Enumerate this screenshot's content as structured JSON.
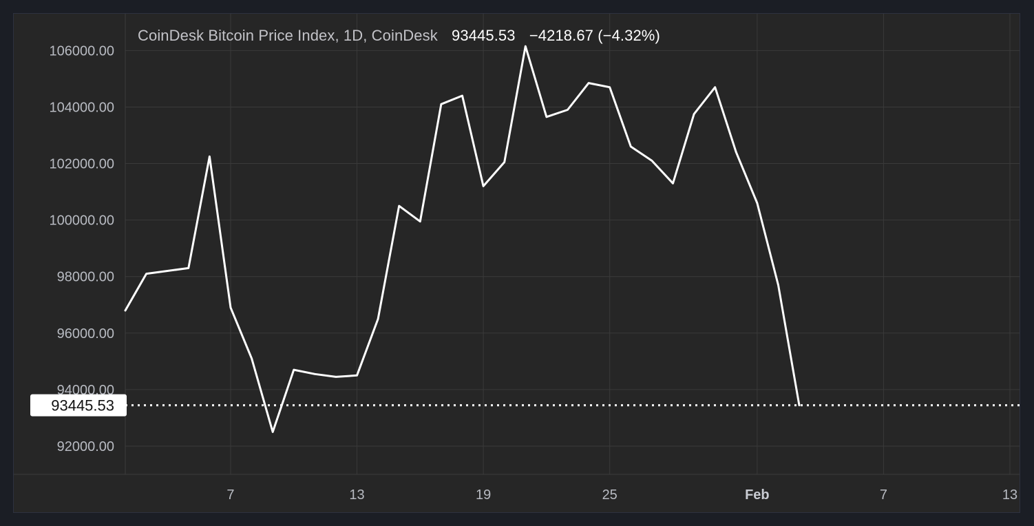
{
  "legend": {
    "title": "CoinDesk Bitcoin Price Index, 1D, CoinDesk",
    "last_value": "93445.53",
    "change": "−4218.67 (−4.32%)"
  },
  "colors": {
    "background": "#262626",
    "page_background": "#1b1e25",
    "line": "#ffffff",
    "grid": "#3a3a3a",
    "label_text": "#b8bbc2"
  },
  "chart_data": {
    "type": "line",
    "title": "",
    "xlabel": "",
    "ylabel": "",
    "ylim": [
      91000,
      107300
    ],
    "xlim": [
      "2025-01-02",
      "2025-02-13"
    ],
    "grid": true,
    "x_ticks": [
      {
        "x": "2025-01-07",
        "label": "7"
      },
      {
        "x": "2025-01-13",
        "label": "13"
      },
      {
        "x": "2025-01-19",
        "label": "19"
      },
      {
        "x": "2025-01-25",
        "label": "25"
      },
      {
        "x": "2025-02-01",
        "label": "Feb",
        "bold": true
      },
      {
        "x": "2025-02-07",
        "label": "7"
      },
      {
        "x": "2025-02-13",
        "label": "13"
      }
    ],
    "y_ticks": [
      {
        "y": 92000,
        "label": "92000.00"
      },
      {
        "y": 94000,
        "label": "94000.00"
      },
      {
        "y": 96000,
        "label": "96000.00"
      },
      {
        "y": 98000,
        "label": "98000.00"
      },
      {
        "y": 100000,
        "label": "100000.00"
      },
      {
        "y": 102000,
        "label": "102000.00"
      },
      {
        "y": 104000,
        "label": "104000.00"
      },
      {
        "y": 106000,
        "label": "106000.00"
      }
    ],
    "series": [
      {
        "x": [
          "2025-01-02",
          "2025-01-03",
          "2025-01-04",
          "2025-01-05",
          "2025-01-06",
          "2025-01-07",
          "2025-01-08",
          "2025-01-09",
          "2025-01-10",
          "2025-01-11",
          "2025-01-12",
          "2025-01-13",
          "2025-01-14",
          "2025-01-15",
          "2025-01-16",
          "2025-01-17",
          "2025-01-18",
          "2025-01-19",
          "2025-01-20",
          "2025-01-21",
          "2025-01-22",
          "2025-01-23",
          "2025-01-24",
          "2025-01-25",
          "2025-01-26",
          "2025-01-27",
          "2025-01-28",
          "2025-01-29",
          "2025-01-30",
          "2025-01-31",
          "2025-02-01",
          "2025-02-02",
          "2025-02-03"
        ],
        "values": [
          96800,
          98100,
          98200,
          98300,
          102250,
          96900,
          95100,
          92500,
          94700,
          94550,
          94450,
          94500,
          96500,
          100500,
          99950,
          104100,
          104400,
          101200,
          102050,
          106150,
          103650,
          103900,
          104850,
          104700,
          102600,
          102100,
          101300,
          103750,
          104700,
          102400,
          100600,
          97700,
          93445.53
        ]
      }
    ],
    "last_price": {
      "value": 93445.53,
      "label": "93445.53"
    }
  }
}
